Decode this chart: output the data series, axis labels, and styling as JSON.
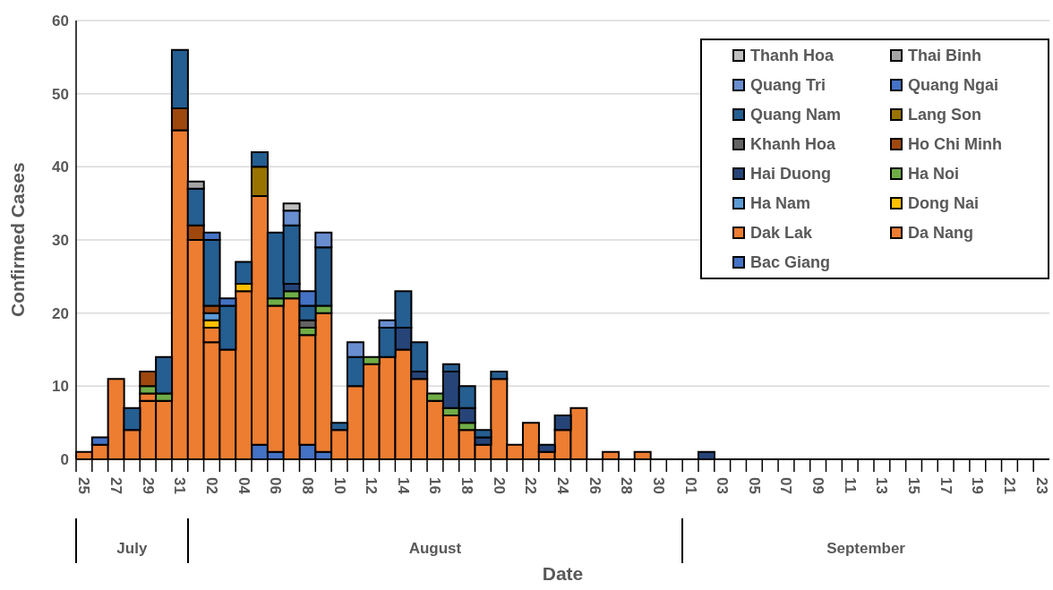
{
  "chart_data": {
    "type": "bar",
    "stacked": true,
    "xlabel": "Date",
    "ylabel": "Confirmed Cases",
    "categories": [
      "25",
      null,
      "27",
      null,
      "29",
      null,
      "31",
      null,
      "02",
      null,
      "04",
      null,
      "06",
      null,
      "08",
      null,
      "10",
      null,
      "12",
      null,
      "14",
      null,
      "16",
      null,
      "18",
      null,
      "20",
      null,
      "22",
      null,
      "24",
      null,
      "26",
      null,
      "28",
      null,
      "30",
      null,
      "01",
      null,
      "03",
      null,
      "05",
      null,
      "07",
      null,
      "09",
      null,
      "11",
      null,
      "13",
      null,
      "15",
      null,
      "17",
      null,
      "19",
      null,
      "21",
      null,
      "23"
    ],
    "annotations": [
      "July",
      "August",
      "September"
    ],
    "ylim": [
      0,
      60
    ],
    "yticks": [
      0,
      10,
      20,
      30,
      40,
      50,
      60
    ],
    "grid": "y",
    "legend": "top right",
    "series": [
      {
        "name": "Bac Giang",
        "color": "#4472c4",
        "values": [
          null,
          null,
          null,
          null,
          null,
          null,
          null,
          null,
          null,
          null,
          null,
          2,
          1,
          null,
          2,
          1,
          null,
          null,
          null,
          null,
          null,
          null,
          null,
          null,
          null,
          null,
          null,
          null,
          null,
          null,
          null,
          null,
          null,
          null,
          null,
          null,
          null,
          null,
          null,
          null,
          null,
          null,
          null,
          null,
          null,
          null,
          null,
          null,
          null,
          null,
          null,
          null,
          null,
          null,
          null,
          null,
          null,
          null,
          null,
          null,
          null
        ]
      },
      {
        "name": "Da Nang",
        "color": "#ed7d31",
        "values": [
          1,
          2,
          11,
          4,
          8,
          8,
          45,
          30,
          16,
          15,
          23,
          34,
          20,
          22,
          15,
          19,
          4,
          10,
          13,
          14,
          15,
          11,
          8,
          6,
          4,
          2,
          11,
          2,
          5,
          1,
          4,
          7,
          null,
          1,
          null,
          1,
          null,
          null,
          null,
          null,
          null,
          null,
          null,
          null,
          null,
          null,
          null,
          null,
          null,
          null,
          null,
          null,
          null,
          null,
          null,
          null,
          null,
          null,
          null,
          null,
          null
        ]
      },
      {
        "name": "Dak Lak",
        "color": "#ed7d31",
        "values": [
          null,
          null,
          null,
          null,
          1,
          null,
          null,
          null,
          2,
          null,
          null,
          null,
          null,
          null,
          null,
          null,
          null,
          null,
          null,
          null,
          null,
          null,
          null,
          null,
          null,
          null,
          null,
          null,
          null,
          null,
          null,
          null,
          null,
          null,
          null,
          null,
          null,
          null,
          null,
          null,
          null,
          null,
          null,
          null,
          null,
          null,
          null,
          null,
          null,
          null,
          null,
          null,
          null,
          null,
          null,
          null,
          null,
          null,
          null,
          null,
          null
        ]
      },
      {
        "name": "Dong Nai",
        "color": "#ffc000",
        "values": [
          null,
          null,
          null,
          null,
          null,
          null,
          null,
          null,
          1,
          null,
          1,
          null,
          null,
          null,
          null,
          null,
          null,
          null,
          null,
          null,
          null,
          null,
          null,
          null,
          null,
          null,
          null,
          null,
          null,
          null,
          null,
          null,
          null,
          null,
          null,
          null,
          null,
          null,
          null,
          null,
          null,
          null,
          null,
          null,
          null,
          null,
          null,
          null,
          null,
          null,
          null,
          null,
          null,
          null,
          null,
          null,
          null,
          null,
          null,
          null,
          null
        ]
      },
      {
        "name": "Ha Nam",
        "color": "#5b9bd5",
        "values": [
          null,
          null,
          null,
          null,
          null,
          null,
          null,
          null,
          1,
          null,
          null,
          null,
          null,
          null,
          null,
          null,
          null,
          null,
          null,
          null,
          null,
          null,
          null,
          null,
          null,
          null,
          null,
          null,
          null,
          null,
          null,
          null,
          null,
          null,
          null,
          null,
          null,
          null,
          null,
          null,
          null,
          null,
          null,
          null,
          null,
          null,
          null,
          null,
          null,
          null,
          null,
          null,
          null,
          null,
          null,
          null,
          null,
          null,
          null,
          null,
          null
        ]
      },
      {
        "name": "Ha Noi",
        "color": "#70ad47",
        "values": [
          null,
          null,
          null,
          null,
          1,
          1,
          null,
          null,
          null,
          null,
          null,
          null,
          1,
          1,
          1,
          1,
          null,
          null,
          1,
          null,
          null,
          null,
          1,
          1,
          1,
          null,
          null,
          null,
          null,
          null,
          null,
          null,
          null,
          null,
          null,
          null,
          null,
          null,
          null,
          null,
          null,
          null,
          null,
          null,
          null,
          null,
          null,
          null,
          null,
          null,
          null,
          null,
          null,
          null,
          null,
          null,
          null,
          null,
          null,
          null,
          null
        ]
      },
      {
        "name": "Hai Duong",
        "color": "#264478",
        "values": [
          null,
          null,
          null,
          null,
          null,
          null,
          null,
          null,
          null,
          null,
          null,
          null,
          null,
          1,
          null,
          null,
          null,
          null,
          null,
          null,
          3,
          1,
          null,
          5,
          2,
          1,
          null,
          null,
          null,
          1,
          2,
          null,
          null,
          null,
          null,
          null,
          null,
          null,
          null,
          1,
          null,
          null,
          null,
          null,
          null,
          null,
          null,
          null,
          null,
          null,
          null,
          null,
          null,
          null,
          null,
          null,
          null,
          null,
          null,
          null,
          null
        ]
      },
      {
        "name": "Ho Chi Minh",
        "color": "#9e480e",
        "values": [
          null,
          null,
          null,
          null,
          2,
          null,
          3,
          2,
          1,
          null,
          null,
          null,
          null,
          null,
          null,
          null,
          null,
          null,
          null,
          null,
          null,
          null,
          null,
          null,
          null,
          null,
          null,
          null,
          null,
          null,
          null,
          null,
          null,
          null,
          null,
          null,
          null,
          null,
          null,
          null,
          null,
          null,
          null,
          null,
          null,
          null,
          null,
          null,
          null,
          null,
          null,
          null,
          null,
          null,
          null,
          null,
          null,
          null,
          null,
          null,
          null
        ]
      },
      {
        "name": "Khanh Hoa",
        "color": "#636363",
        "values": [
          null,
          null,
          null,
          null,
          null,
          null,
          null,
          null,
          null,
          null,
          null,
          null,
          null,
          null,
          1,
          null,
          null,
          null,
          null,
          null,
          null,
          null,
          null,
          null,
          null,
          null,
          null,
          null,
          null,
          null,
          null,
          null,
          null,
          null,
          null,
          null,
          null,
          null,
          null,
          null,
          null,
          null,
          null,
          null,
          null,
          null,
          null,
          null,
          null,
          null,
          null,
          null,
          null,
          null,
          null,
          null,
          null,
          null,
          null,
          null,
          null
        ]
      },
      {
        "name": "Lang Son",
        "color": "#997300",
        "values": [
          null,
          null,
          null,
          null,
          null,
          null,
          null,
          null,
          null,
          null,
          null,
          4,
          null,
          null,
          null,
          null,
          null,
          null,
          null,
          null,
          null,
          null,
          null,
          null,
          null,
          null,
          null,
          null,
          null,
          null,
          null,
          null,
          null,
          null,
          null,
          null,
          null,
          null,
          null,
          null,
          null,
          null,
          null,
          null,
          null,
          null,
          null,
          null,
          null,
          null,
          null,
          null,
          null,
          null,
          null,
          null,
          null,
          null,
          null,
          null,
          null
        ]
      },
      {
        "name": "Quang Nam",
        "color": "#255e91",
        "values": [
          null,
          null,
          null,
          3,
          null,
          5,
          8,
          5,
          9,
          6,
          3,
          2,
          9,
          8,
          2,
          8,
          1,
          4,
          null,
          4,
          5,
          4,
          null,
          1,
          3,
          1,
          1,
          null,
          null,
          null,
          null,
          null,
          null,
          null,
          null,
          null,
          null,
          null,
          null,
          null,
          null,
          null,
          null,
          null,
          null,
          null,
          null,
          null,
          null,
          null,
          null,
          null,
          null,
          null,
          null,
          null,
          null,
          null,
          null,
          null,
          null
        ]
      },
      {
        "name": "Quang Ngai",
        "color": "#4472c4",
        "values": [
          null,
          1,
          null,
          null,
          null,
          null,
          null,
          null,
          1,
          1,
          null,
          null,
          null,
          null,
          2,
          null,
          null,
          null,
          null,
          null,
          null,
          null,
          null,
          null,
          null,
          null,
          null,
          null,
          null,
          null,
          null,
          null,
          null,
          null,
          null,
          null,
          null,
          null,
          null,
          null,
          null,
          null,
          null,
          null,
          null,
          null,
          null,
          null,
          null,
          null,
          null,
          null,
          null,
          null,
          null,
          null,
          null,
          null,
          null,
          null,
          null
        ]
      },
      {
        "name": "Quang Tri",
        "color": "#698ed0",
        "values": [
          null,
          null,
          null,
          null,
          null,
          null,
          null,
          null,
          null,
          null,
          null,
          null,
          null,
          2,
          null,
          2,
          null,
          2,
          null,
          1,
          null,
          null,
          null,
          null,
          null,
          null,
          null,
          null,
          null,
          null,
          null,
          null,
          null,
          null,
          null,
          null,
          null,
          null,
          null,
          null,
          null,
          null,
          null,
          null,
          null,
          null,
          null,
          null,
          null,
          null,
          null,
          null,
          null,
          null,
          null,
          null,
          null,
          null,
          null,
          null,
          null
        ]
      },
      {
        "name": "Thai Binh",
        "color": "#a5a5a5",
        "values": [
          null,
          null,
          null,
          null,
          null,
          null,
          null,
          1,
          null,
          null,
          null,
          null,
          null,
          null,
          null,
          null,
          null,
          null,
          null,
          null,
          null,
          null,
          null,
          null,
          null,
          null,
          null,
          null,
          null,
          null,
          null,
          null,
          null,
          null,
          null,
          null,
          null,
          null,
          null,
          null,
          null,
          null,
          null,
          null,
          null,
          null,
          null,
          null,
          null,
          null,
          null,
          null,
          null,
          null,
          null,
          null,
          null,
          null,
          null,
          null,
          null
        ]
      },
      {
        "name": "Thanh Hoa",
        "color": "#bfbfbf",
        "values": [
          null,
          null,
          null,
          null,
          null,
          null,
          null,
          null,
          null,
          null,
          null,
          null,
          null,
          1,
          null,
          null,
          null,
          null,
          null,
          null,
          null,
          null,
          null,
          null,
          null,
          null,
          null,
          null,
          null,
          null,
          null,
          null,
          null,
          null,
          null,
          null,
          null,
          null,
          null,
          null,
          null,
          null,
          null,
          null,
          null,
          null,
          null,
          null,
          null,
          null,
          null,
          null,
          null,
          null,
          null,
          null,
          null,
          null,
          null,
          null,
          null
        ]
      }
    ]
  }
}
